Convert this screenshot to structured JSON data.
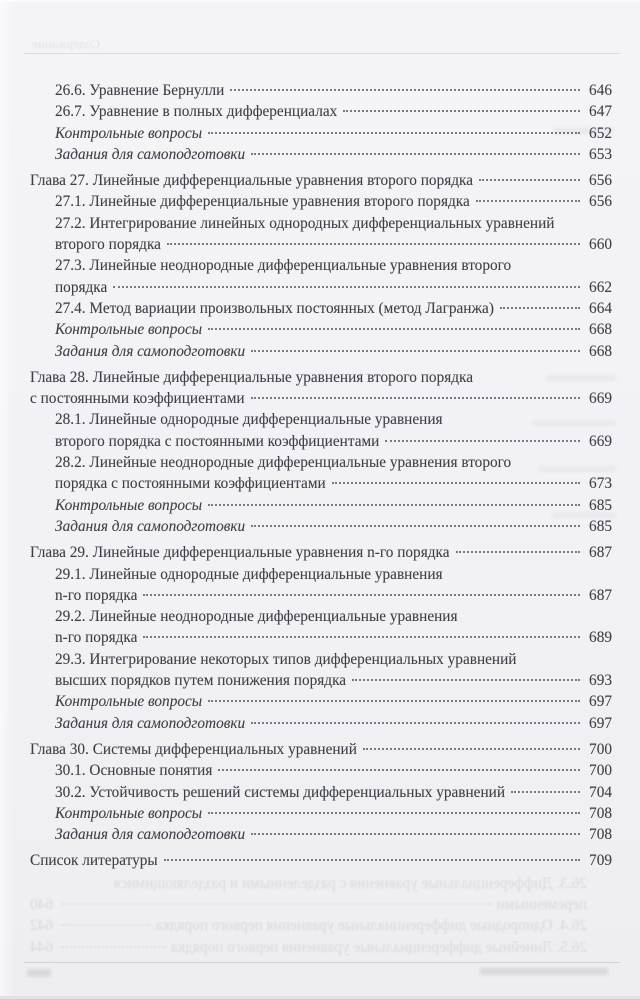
{
  "bleed": {
    "header": "Содержание",
    "entries": [
      {
        "type": "sub",
        "lines": [
          "26.3. Дифференциальные уравнения с разделенными и разделяющимися",
          "переменными"
        ],
        "page": "640"
      },
      {
        "type": "sub",
        "lines": [
          "26.4. Однородные дифференциальные уравнения первого порядка"
        ],
        "page": "642"
      },
      {
        "type": "sub",
        "lines": [
          "26.5. Линейные дифференциальные уравнения первого порядка"
        ],
        "page": "644"
      }
    ]
  },
  "toc": {
    "entries": [
      {
        "type": "sub",
        "lines": [
          "26.6. Уравнение Бернулли"
        ],
        "page": "646"
      },
      {
        "type": "sub",
        "lines": [
          "26.7. Уравнение в полных дифференциалах"
        ],
        "page": "647"
      },
      {
        "type": "exercise",
        "lines": [
          "Контрольные вопросы"
        ],
        "page": "652"
      },
      {
        "type": "exercise",
        "lines": [
          "Задания для самоподготовки"
        ],
        "page": "653"
      },
      {
        "type": "chapter",
        "lines": [
          "Глава 27. Линейные дифференциальные уравнения второго порядка"
        ],
        "page": "656"
      },
      {
        "type": "sub",
        "lines": [
          "27.1. Линейные дифференциальные уравнения второго порядка"
        ],
        "page": "656"
      },
      {
        "type": "sub",
        "lines": [
          "27.2. Интегрирование линейных однородных дифференциальных уравнений",
          "второго порядка"
        ],
        "page": "660"
      },
      {
        "type": "sub",
        "lines": [
          "27.3. Линейные неоднородные дифференциальные уравнения второго",
          "порядка"
        ],
        "page": "662"
      },
      {
        "type": "sub",
        "lines": [
          "27.4. Метод вариации произвольных постоянных (метод Лагранжа)"
        ],
        "page": "664"
      },
      {
        "type": "exercise",
        "lines": [
          "Контрольные вопросы"
        ],
        "page": "668"
      },
      {
        "type": "exercise",
        "lines": [
          "Задания для самоподготовки"
        ],
        "page": "668"
      },
      {
        "type": "chapter",
        "lines": [
          "Глава 28. Линейные дифференциальные уравнения второго порядка",
          "с постоянными коэффициентами"
        ],
        "page": "669"
      },
      {
        "type": "sub",
        "lines": [
          "28.1. Линейные однородные дифференциальные уравнения",
          "второго порядка с постоянными коэффициентами"
        ],
        "page": "669"
      },
      {
        "type": "sub",
        "lines": [
          "28.2. Линейные неоднородные дифференциальные уравнения второго",
          "порядка с постоянными коэффициентами"
        ],
        "page": "673"
      },
      {
        "type": "exercise",
        "lines": [
          "Контрольные вопросы"
        ],
        "page": "685"
      },
      {
        "type": "exercise",
        "lines": [
          "Задания для самоподготовки"
        ],
        "page": "685"
      },
      {
        "type": "chapter",
        "lines": [
          "Глава 29. Линейные дифференциальные уравнения n-го порядка"
        ],
        "page": "687"
      },
      {
        "type": "sub",
        "lines": [
          "29.1. Линейные однородные дифференциальные уравнения",
          "n-го порядка"
        ],
        "page": "687"
      },
      {
        "type": "sub",
        "lines": [
          "29.2. Линейные неоднородные дифференциальные уравнения",
          "n-го порядка"
        ],
        "page": "689"
      },
      {
        "type": "sub",
        "lines": [
          "29.3. Интегрирование некоторых типов дифференциальных уравнений",
          "высших порядков путем понижения порядка"
        ],
        "page": "693"
      },
      {
        "type": "exercise",
        "lines": [
          "Контрольные вопросы"
        ],
        "page": "697"
      },
      {
        "type": "exercise",
        "lines": [
          "Задания для самоподготовки"
        ],
        "page": "697"
      },
      {
        "type": "chapter",
        "lines": [
          "Глава 30. Системы дифференциальных уравнений"
        ],
        "page": "700"
      },
      {
        "type": "sub",
        "lines": [
          "30.1. Основные понятия"
        ],
        "page": "700"
      },
      {
        "type": "sub",
        "lines": [
          "30.2. Устойчивость решений системы дифференциальных уравнений"
        ],
        "page": "704"
      },
      {
        "type": "exercise",
        "lines": [
          "Контрольные вопросы"
        ],
        "page": "708"
      },
      {
        "type": "exercise",
        "lines": [
          "Задания для самоподготовки"
        ],
        "page": "708"
      },
      {
        "type": "chapter",
        "lines": [
          "Список литературы"
        ],
        "page": "709"
      }
    ]
  }
}
